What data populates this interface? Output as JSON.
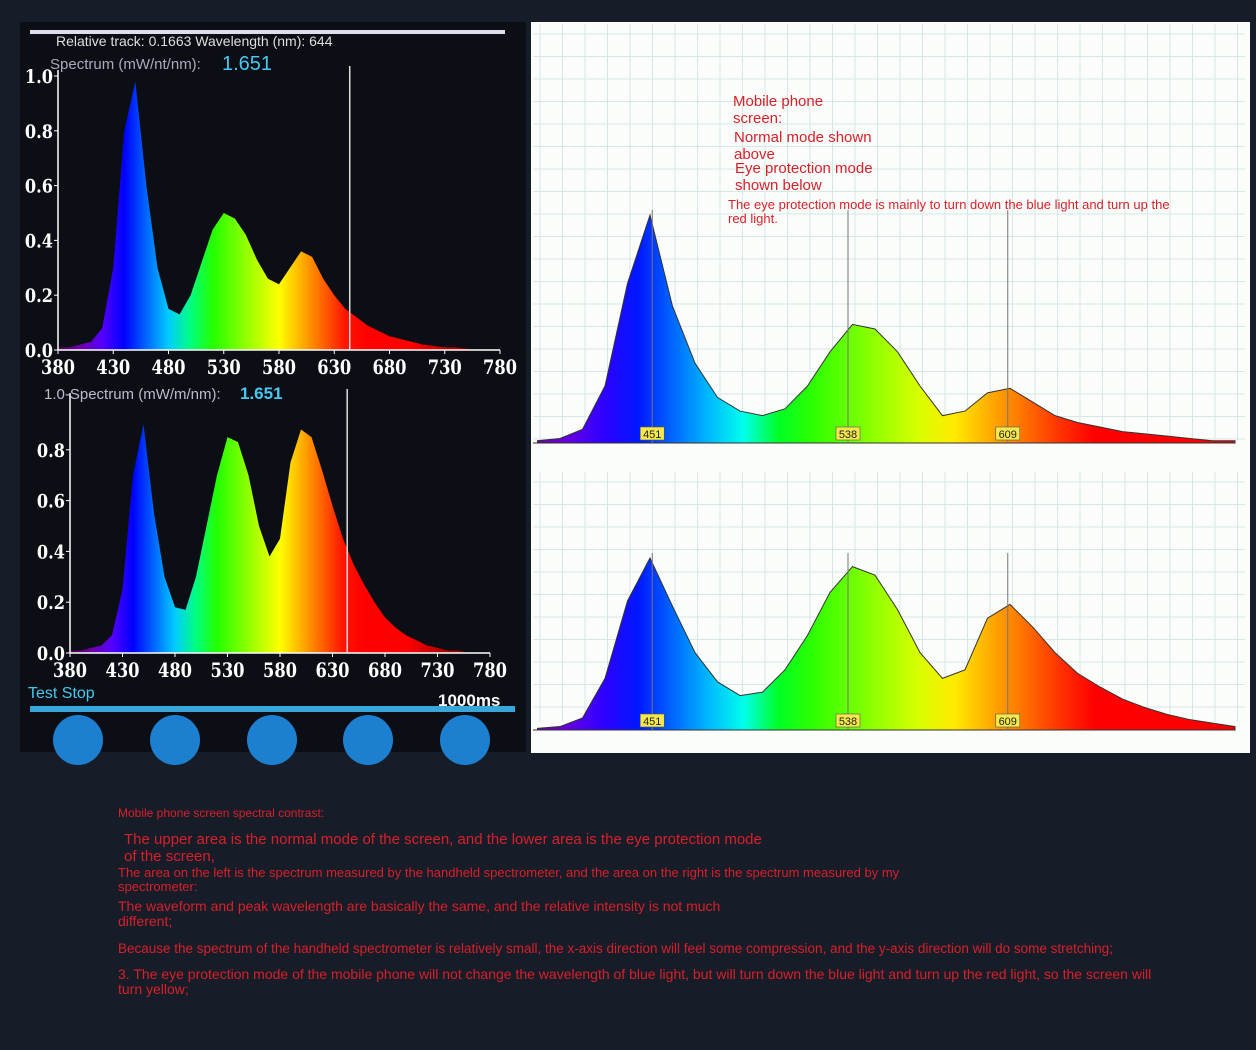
{
  "chart_data": [
    {
      "type": "area",
      "header": "Relative track: 0.1663 Wavelength (nm): 644",
      "y_label": "Spectrum (mW/nt/nm):",
      "reading": "1.651",
      "cursor": 644,
      "x": [
        380,
        390,
        400,
        410,
        420,
        430,
        440,
        450,
        460,
        470,
        480,
        490,
        500,
        510,
        520,
        530,
        540,
        550,
        560,
        570,
        580,
        590,
        600,
        610,
        620,
        630,
        640,
        650,
        660,
        670,
        680,
        690,
        700,
        710,
        720,
        730,
        740,
        750,
        760,
        770,
        780
      ],
      "values": [
        0.01,
        0.01,
        0.02,
        0.03,
        0.08,
        0.3,
        0.8,
        0.98,
        0.6,
        0.3,
        0.15,
        0.13,
        0.2,
        0.32,
        0.44,
        0.5,
        0.48,
        0.42,
        0.33,
        0.26,
        0.24,
        0.3,
        0.36,
        0.34,
        0.26,
        0.2,
        0.15,
        0.12,
        0.09,
        0.07,
        0.05,
        0.04,
        0.03,
        0.02,
        0.015,
        0.01,
        0.01,
        0.005,
        0,
        0,
        0
      ],
      "xlim": [
        380,
        780
      ],
      "xticks": [
        380,
        430,
        480,
        530,
        580,
        630,
        680,
        730,
        780
      ],
      "ylim": [
        0,
        1
      ],
      "yticks": [
        {
          "value": 0,
          "label": "0.0"
        },
        0.2,
        0.4,
        0.6,
        0.8,
        {
          "value": 1,
          "label": "1.0"
        }
      ]
    },
    {
      "type": "area",
      "y_label": "1.0-Spectrum (mW/m/nm):",
      "reading": "1.651",
      "status": "Test Stop",
      "interval": "1000ms",
      "cursor": 644,
      "x": [
        380,
        390,
        400,
        410,
        420,
        430,
        440,
        450,
        460,
        470,
        480,
        490,
        500,
        510,
        520,
        530,
        540,
        550,
        560,
        570,
        580,
        590,
        600,
        610,
        620,
        630,
        640,
        650,
        660,
        670,
        680,
        690,
        700,
        710,
        720,
        730,
        740,
        750,
        760,
        770,
        780
      ],
      "values": [
        0.01,
        0.01,
        0.02,
        0.03,
        0.07,
        0.25,
        0.7,
        0.9,
        0.55,
        0.3,
        0.18,
        0.17,
        0.3,
        0.5,
        0.7,
        0.85,
        0.83,
        0.7,
        0.5,
        0.38,
        0.45,
        0.75,
        0.88,
        0.85,
        0.72,
        0.58,
        0.45,
        0.35,
        0.27,
        0.2,
        0.14,
        0.1,
        0.07,
        0.05,
        0.03,
        0.02,
        0.01,
        0.01,
        0,
        0,
        0
      ],
      "xlim": [
        380,
        780
      ],
      "xticks": [
        380,
        430,
        480,
        530,
        580,
        630,
        680,
        730,
        780
      ],
      "ylim": [
        0,
        1
      ],
      "yticks": [
        {
          "value": 0,
          "label": "0.0"
        },
        0.2,
        0.4,
        0.6,
        0.8
      ]
    },
    {
      "type": "area",
      "peaks": [
        451,
        538,
        609
      ],
      "x": [
        400,
        410,
        420,
        430,
        440,
        450,
        460,
        470,
        480,
        490,
        500,
        510,
        520,
        530,
        540,
        550,
        560,
        570,
        580,
        590,
        600,
        610,
        620,
        630,
        640,
        650,
        660,
        670,
        680,
        690,
        700,
        710
      ],
      "values": [
        0.01,
        0.02,
        0.06,
        0.25,
        0.7,
        1.0,
        0.6,
        0.35,
        0.2,
        0.14,
        0.12,
        0.15,
        0.25,
        0.4,
        0.52,
        0.5,
        0.4,
        0.25,
        0.12,
        0.14,
        0.22,
        0.24,
        0.18,
        0.12,
        0.09,
        0.07,
        0.05,
        0.04,
        0.03,
        0.02,
        0.01,
        0.01
      ],
      "xlim": [
        398,
        710
      ],
      "ylim": [
        0,
        1
      ]
    },
    {
      "type": "area",
      "peaks": [
        451,
        538,
        609
      ],
      "x": [
        400,
        410,
        420,
        430,
        440,
        450,
        460,
        470,
        480,
        490,
        500,
        510,
        520,
        530,
        540,
        550,
        560,
        570,
        580,
        590,
        600,
        610,
        620,
        630,
        640,
        650,
        660,
        670,
        680,
        690,
        700,
        710
      ],
      "values": [
        0.01,
        0.02,
        0.07,
        0.3,
        0.75,
        1.0,
        0.72,
        0.45,
        0.28,
        0.2,
        0.22,
        0.35,
        0.55,
        0.8,
        0.95,
        0.9,
        0.7,
        0.45,
        0.3,
        0.35,
        0.65,
        0.73,
        0.6,
        0.45,
        0.33,
        0.25,
        0.18,
        0.13,
        0.09,
        0.06,
        0.04,
        0.02
      ],
      "xlim": [
        398,
        710
      ],
      "ylim": [
        0,
        1
      ]
    }
  ],
  "annotations": [
    "Mobile phone screen:",
    "Normal mode shown above",
    "Eye protection mode shown below",
    "The eye protection mode is mainly to turn down the blue light and turn up the red light."
  ],
  "notes": [
    "Mobile phone screen spectral contrast:",
    "The upper area is the normal mode of the screen, and the lower area is the eye protection mode of the screen,",
    "The area on the left is the spectrum measured by the handheld spectrometer, and the area on the right is the spectrum measured by my spectrometer:",
    "The waveform and peak wavelength are basically the same, and the relative intensity is not much different;",
    "Because the spectrum of the handheld spectrometer is relatively small, the x-axis direction will feel some compression, and the y-axis direction will do some stretching;",
    "3. The eye protection mode of the mobile phone will not change the wavelength of blue light, but will turn down the blue light and turn up the red light, so the screen will turn yellow;"
  ]
}
